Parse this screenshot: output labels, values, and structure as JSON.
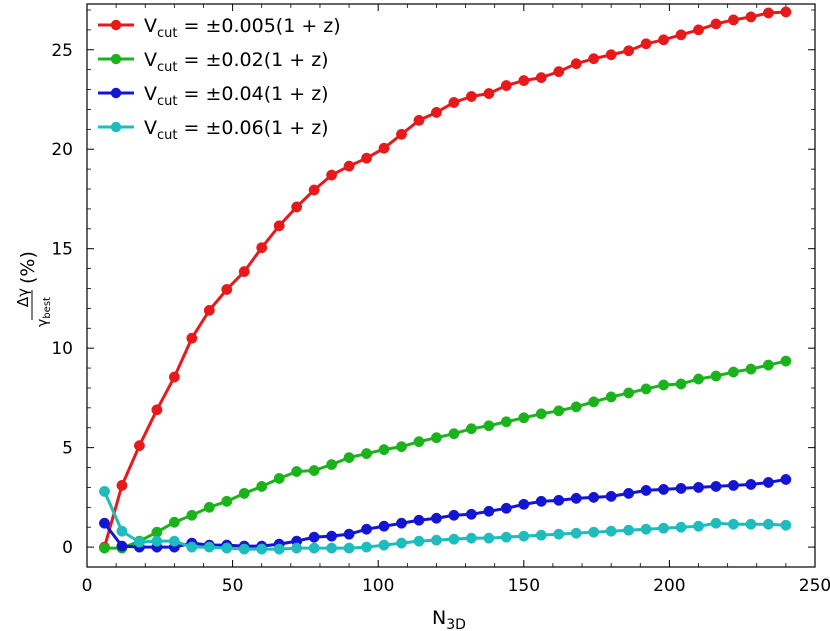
{
  "chart_data": {
    "type": "line",
    "xlabel": "N",
    "xlabel_sub": "3D",
    "ylabel_num": "Δγ",
    "ylabel_den": "γ",
    "ylabel_den_sub": "best",
    "ylabel_suffix": "(%)",
    "xlim": [
      0,
      250
    ],
    "ylim": [
      -1,
      27.3
    ],
    "xticks": [
      0,
      50,
      100,
      150,
      200,
      250
    ],
    "xtick_labels": [
      "0",
      "50",
      "100",
      "150",
      "200",
      "250"
    ],
    "yticks": [
      0,
      5,
      10,
      15,
      20,
      25
    ],
    "ytick_labels": [
      "0",
      "5",
      "10",
      "15",
      "20",
      "25"
    ],
    "legend_position": "top-left",
    "x": [
      6,
      12,
      18,
      24,
      30,
      36,
      42,
      48,
      54,
      60,
      66,
      72,
      78,
      84,
      90,
      96,
      102,
      108,
      114,
      120,
      126,
      132,
      138,
      144,
      150,
      156,
      162,
      168,
      174,
      180,
      186,
      192,
      198,
      204,
      210,
      216,
      222,
      228,
      234,
      240
    ],
    "series": [
      {
        "name": "±0.005(1 + z)",
        "label_prefix": "V",
        "label_sub": "cut",
        "label_eq": " = ",
        "color": "#e8191b",
        "values": [
          0.0,
          3.1,
          5.1,
          6.9,
          8.55,
          10.5,
          11.9,
          12.95,
          13.85,
          15.05,
          16.15,
          17.1,
          17.95,
          18.7,
          19.15,
          19.55,
          20.05,
          20.75,
          21.45,
          21.85,
          22.35,
          22.65,
          22.8,
          23.2,
          23.45,
          23.6,
          23.9,
          24.3,
          24.55,
          24.75,
          24.95,
          25.3,
          25.5,
          25.75,
          26.0,
          26.3,
          26.5,
          26.65,
          26.85,
          26.9
        ]
      },
      {
        "name": "±0.02(1 + z)",
        "label_prefix": "V",
        "label_sub": "cut",
        "label_eq": " = ",
        "color": "#1bb31b",
        "values": [
          -0.05,
          -0.05,
          0.3,
          0.75,
          1.25,
          1.6,
          2.0,
          2.3,
          2.7,
          3.05,
          3.45,
          3.8,
          3.85,
          4.15,
          4.5,
          4.7,
          4.9,
          5.05,
          5.3,
          5.5,
          5.7,
          5.95,
          6.1,
          6.3,
          6.5,
          6.7,
          6.85,
          7.05,
          7.3,
          7.55,
          7.75,
          7.95,
          8.15,
          8.2,
          8.45,
          8.6,
          8.8,
          8.95,
          9.15,
          9.35
        ]
      },
      {
        "name": "±0.04(1 + z)",
        "label_prefix": "V",
        "label_sub": "cut",
        "label_eq": " = ",
        "color": "#1414d4",
        "values": [
          1.2,
          0.05,
          0.0,
          0.0,
          0.0,
          0.2,
          0.1,
          0.1,
          0.05,
          0.05,
          0.15,
          0.3,
          0.5,
          0.55,
          0.65,
          0.9,
          1.05,
          1.2,
          1.35,
          1.45,
          1.6,
          1.65,
          1.8,
          1.95,
          2.15,
          2.3,
          2.35,
          2.45,
          2.5,
          2.55,
          2.7,
          2.85,
          2.9,
          2.95,
          3.0,
          3.05,
          3.1,
          3.15,
          3.25,
          3.4
        ]
      },
      {
        "name": "±0.06(1 + z)",
        "label_prefix": "V",
        "label_sub": "cut",
        "label_eq": " = ",
        "color": "#1ebcbc",
        "values": [
          2.8,
          0.8,
          0.25,
          0.3,
          0.3,
          0.0,
          0.0,
          -0.05,
          -0.1,
          -0.1,
          -0.1,
          -0.05,
          -0.05,
          -0.05,
          -0.05,
          0.0,
          0.1,
          0.2,
          0.3,
          0.35,
          0.4,
          0.45,
          0.45,
          0.5,
          0.55,
          0.6,
          0.65,
          0.7,
          0.75,
          0.8,
          0.85,
          0.9,
          0.95,
          1.0,
          1.05,
          1.2,
          1.15,
          1.15,
          1.15,
          1.1
        ]
      }
    ]
  }
}
